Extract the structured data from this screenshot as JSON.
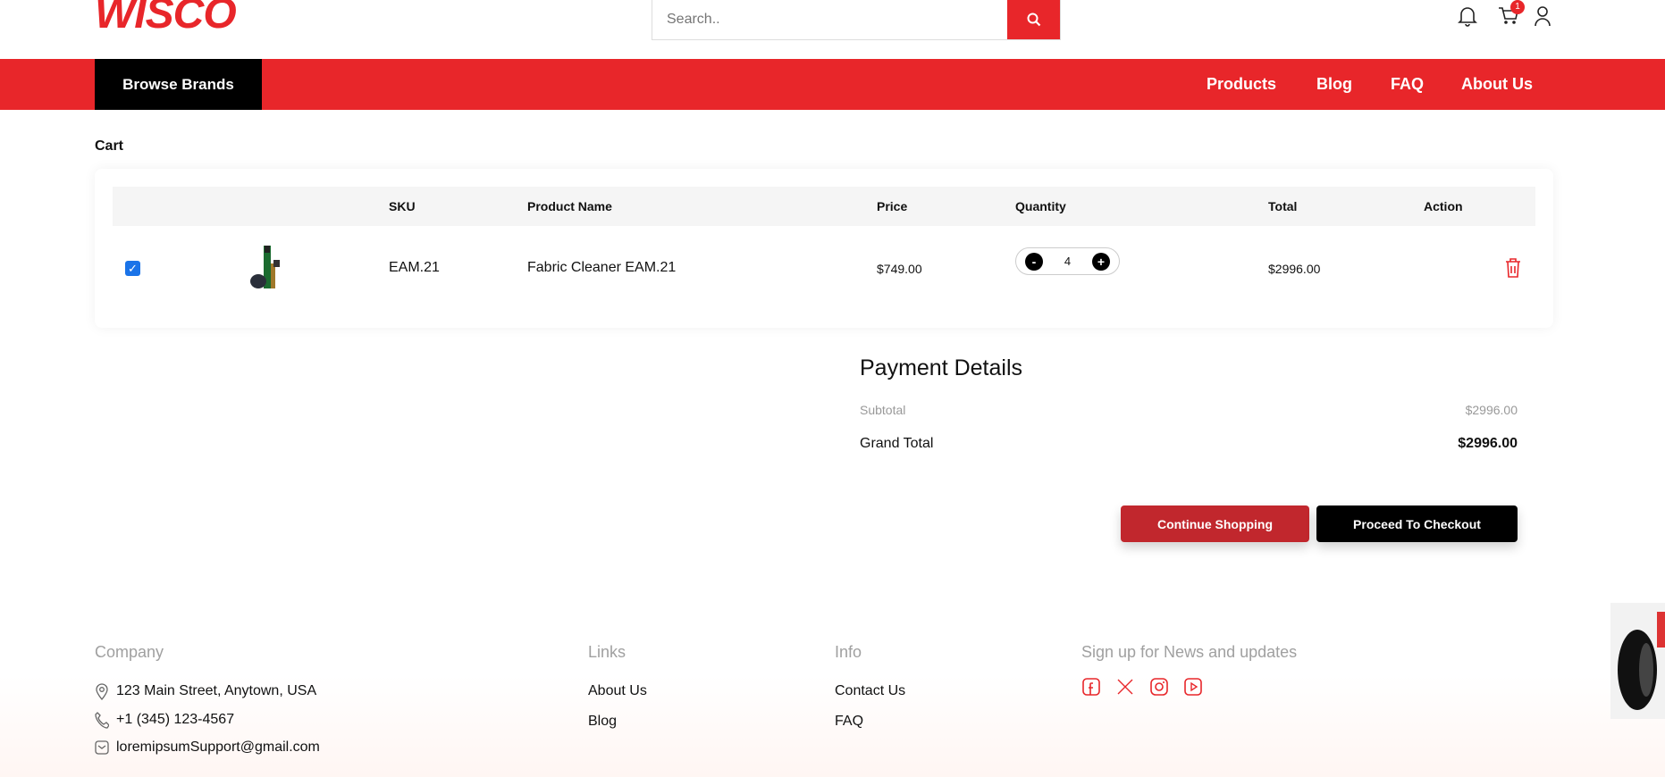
{
  "header": {
    "logo": "WISCO",
    "search_placeholder": "Search..",
    "cart_count": "1"
  },
  "nav": {
    "browse": "Browse Brands",
    "links": [
      "Products",
      "Blog",
      "FAQ",
      "About Us"
    ]
  },
  "cart": {
    "title": "Cart",
    "columns": [
      "SKU",
      "Product Name",
      "Price",
      "Quantity",
      "Total",
      "Action"
    ],
    "items": [
      {
        "checked": true,
        "sku": "EAM.21",
        "name": "Fabric Cleaner EAM.21",
        "price": "$749.00",
        "quantity": "4",
        "total": "$2996.00"
      }
    ]
  },
  "payment": {
    "title": "Payment Details",
    "subtotal_label": "Subtotal",
    "subtotal": "$2996.00",
    "grand_label": "Grand Total",
    "grand_total": "$2996.00",
    "continue": "Continue Shopping",
    "checkout": "Proceed To Checkout"
  },
  "footer": {
    "company": {
      "title": "Company",
      "address": "123 Main Street, Anytown, USA",
      "phone": "+1 (345) 123-4567",
      "email": "loremipsumSupport@gmail.com"
    },
    "links": {
      "title": "Links",
      "items": [
        "About Us",
        "Blog"
      ]
    },
    "info": {
      "title": "Info",
      "items": [
        "Contact Us",
        "FAQ"
      ]
    },
    "signup": {
      "title": "Sign up for News and updates",
      "social": [
        "facebook-icon",
        "x-icon",
        "instagram-icon",
        "youtube-icon"
      ]
    }
  },
  "colors": {
    "brand": "#e8262a",
    "continue": "#c1272d",
    "checkout": "#000000"
  }
}
